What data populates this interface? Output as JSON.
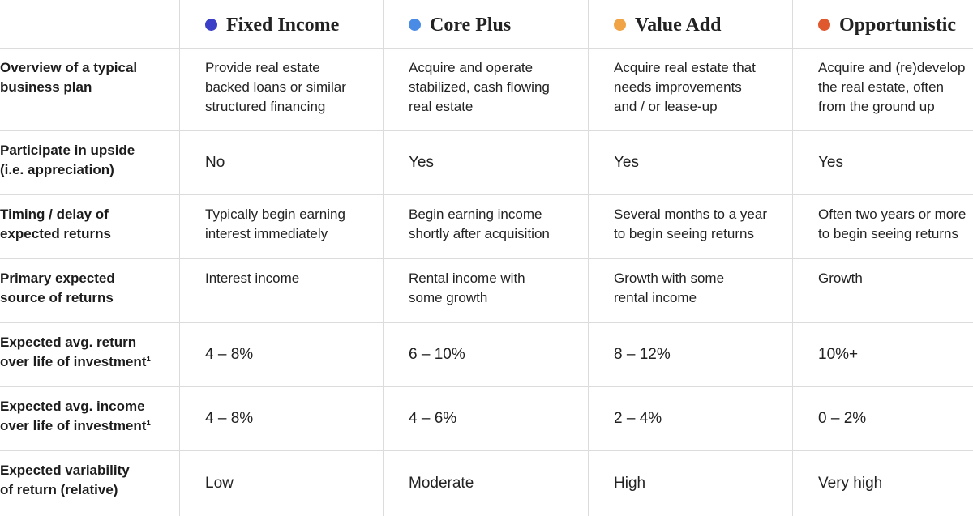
{
  "header": {
    "columns": [
      {
        "label": "Fixed Income",
        "color": "#3b3fc8"
      },
      {
        "label": "Core Plus",
        "color": "#4a8be6"
      },
      {
        "label": "Value Add",
        "color": "#f0a446"
      },
      {
        "label": "Opportunistic",
        "color": "#e0582e"
      }
    ]
  },
  "table": {
    "rows": [
      {
        "label": "Overview of a typical\nbusiness plan",
        "cells": [
          "Provide real estate\nbacked loans or similar\nstructured financing",
          "Acquire and operate\nstabilized, cash flowing\nreal estate",
          "Acquire real estate that\nneeds improvements\nand / or lease-up",
          "Acquire and (re)develop\nthe real estate, often\nfrom the ground up"
        ]
      },
      {
        "label": "Participate in upside\n(i.e. appreciation)",
        "cells": [
          "No",
          "Yes",
          "Yes",
          "Yes"
        ]
      },
      {
        "label": "Timing / delay of\nexpected returns",
        "cells": [
          "Typically begin earning\ninterest immediately",
          "Begin earning income\nshortly after acquisition",
          "Several months to a year\nto begin seeing returns",
          "Often two years or more\nto begin seeing returns"
        ]
      },
      {
        "label": "Primary expected\nsource of returns",
        "cells": [
          "Interest income",
          "Rental income with\nsome growth",
          "Growth with some\nrental income",
          "Growth"
        ]
      },
      {
        "label": "Expected avg. return\nover life of investment¹",
        "cells": [
          "4 – 8%",
          "6 – 10%",
          "8 – 12%",
          "10%+"
        ]
      },
      {
        "label": "Expected avg. income\nover life of investment¹",
        "cells": [
          "4 – 8%",
          "4 – 6%",
          "2 – 4%",
          "0 – 2%"
        ]
      },
      {
        "label": "Expected variability\nof return (relative)",
        "cells": [
          "Low",
          "Moderate",
          "High",
          "Very high"
        ]
      }
    ]
  }
}
